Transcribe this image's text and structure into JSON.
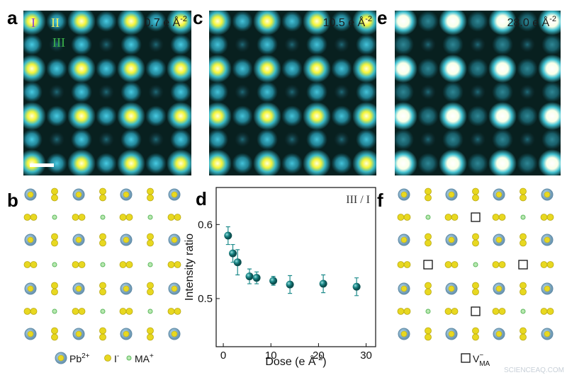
{
  "panels": {
    "a": {
      "label": "a",
      "dose": "0.7 e Å",
      "dose_exp": "-2"
    },
    "b": {
      "label": "b"
    },
    "c": {
      "label": "c",
      "dose": "10.5 e Å",
      "dose_exp": "-2"
    },
    "d": {
      "label": "d"
    },
    "e": {
      "label": "e",
      "dose": "28.0 e Å",
      "dose_exp": "-2"
    },
    "f": {
      "label": "f"
    }
  },
  "sites": [
    "I",
    "II",
    "III"
  ],
  "legend": {
    "pb": {
      "text": "Pb",
      "sup": "2+"
    },
    "i": {
      "text": "I",
      "sup": "-"
    },
    "ma": {
      "text": "MA",
      "sup": "+"
    },
    "vacancy": {
      "text": "V",
      "sup": "−",
      "sub": "MA"
    }
  },
  "chart_data": {
    "type": "scatter",
    "annotation": "III / I",
    "xlabel": "Dose (e Å",
    "xlabel_exp": "-2",
    "xlabel_end": ")",
    "ylabel": "Intensity ratio",
    "x": [
      1,
      2,
      3,
      5.5,
      7,
      10.5,
      14,
      21,
      28
    ],
    "values": [
      0.585,
      0.561,
      0.549,
      0.53,
      0.528,
      0.524,
      0.519,
      0.52,
      0.516
    ],
    "errors": [
      0.012,
      0.012,
      0.017,
      0.01,
      0.008,
      0.006,
      0.012,
      0.012,
      0.012
    ],
    "color": "#1f8c8c",
    "xlim": [
      -1.5,
      32
    ],
    "ylim": [
      0.435,
      0.65
    ],
    "xticks": [
      0,
      10,
      20,
      30
    ],
    "yticks": [
      0.5,
      0.6
    ]
  },
  "watermark": "SCIENCEAQ.COM"
}
